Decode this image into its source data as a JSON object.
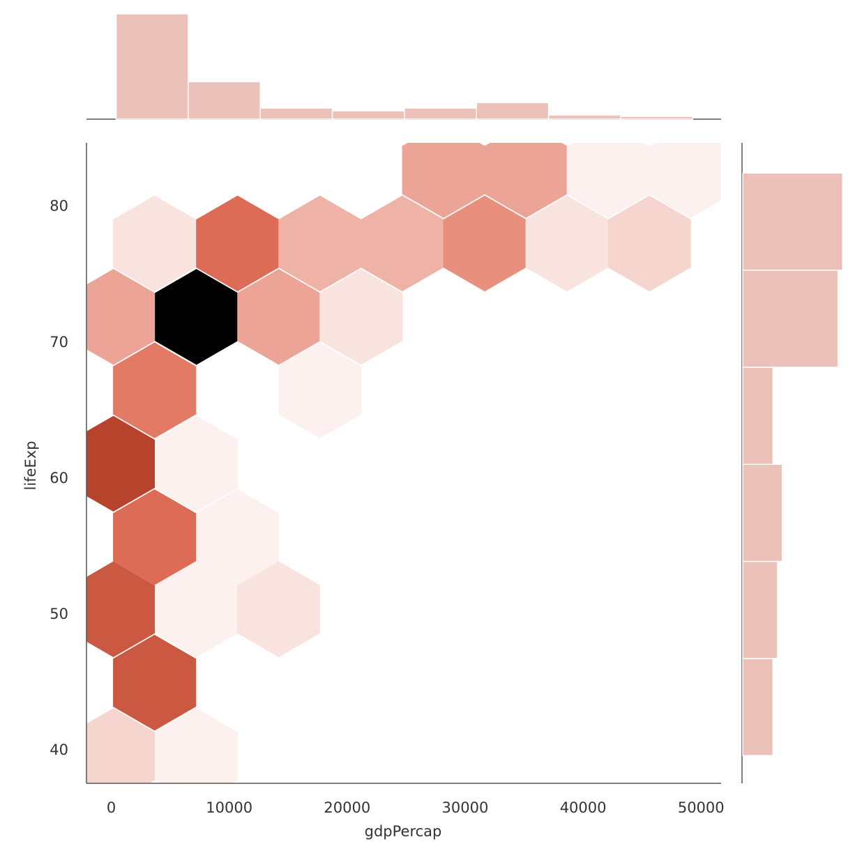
{
  "chart_data": {
    "type": "hexbin",
    "xlabel": "gdpPercap",
    "ylabel": "lifeExp",
    "xlim": [
      -2100,
      51700
    ],
    "ylim": [
      37.6,
      84.7
    ],
    "xticks": [
      0,
      10000,
      20000,
      30000,
      40000,
      50000
    ],
    "yticks": [
      40,
      50,
      60,
      70,
      80
    ],
    "colormap": [
      "#ffffff",
      "#e2735d",
      "#b8432c",
      "#000000"
    ],
    "x": [
      28170,
      35150,
      42130,
      49110,
      3670,
      10710,
      17690,
      24670,
      31660,
      38640,
      45620,
      180,
      7220,
      14200,
      21180,
      3670,
      17690,
      180,
      7220,
      3670,
      10710,
      180,
      7220,
      14200,
      3670,
      180,
      7220
    ],
    "y": [
      82.7,
      82.7,
      82.7,
      82.7,
      77.3,
      77.3,
      77.3,
      77.3,
      77.3,
      77.3,
      77.3,
      71.9,
      71.9,
      71.9,
      71.9,
      66.5,
      66.5,
      61.1,
      61.1,
      55.7,
      55.7,
      50.4,
      50.4,
      50.4,
      45.0,
      39.6,
      39.6
    ],
    "values": [
      13,
      13,
      2,
      2,
      4,
      23,
      11,
      11,
      16,
      4,
      6,
      13,
      60,
      13,
      4,
      19,
      2,
      40,
      2,
      23,
      2,
      31,
      2,
      4,
      31,
      6,
      2
    ],
    "hist_color": "#ecc1ba",
    "marginal_x": {
      "bins": [
        414,
        6524,
        12634,
        18744,
        24854,
        30964,
        37074,
        43184,
        49294
      ],
      "values": [
        76,
        27,
        8,
        6,
        8,
        12,
        3,
        2
      ],
      "lim": [
        0,
        79
      ]
    },
    "marginal_y": {
      "bins": [
        39.64,
        46.78,
        53.92,
        61.06,
        68.2,
        75.34,
        82.48
      ],
      "values": [
        13,
        15,
        17,
        13,
        41,
        43
      ],
      "lim": [
        0,
        45
      ]
    }
  }
}
